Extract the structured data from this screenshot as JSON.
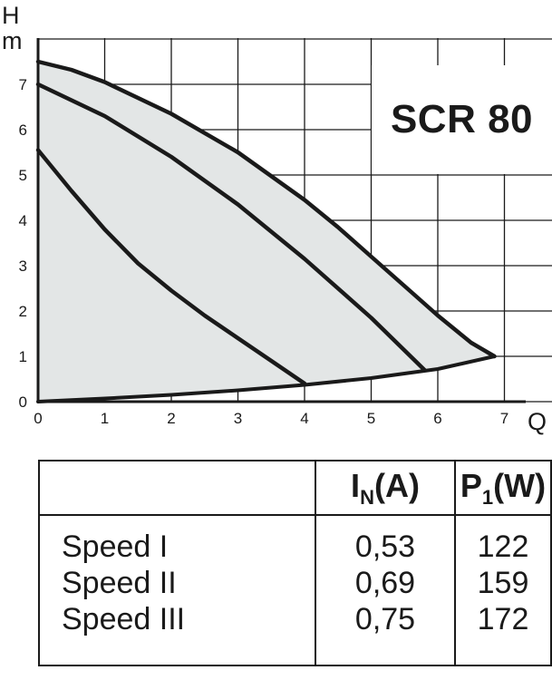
{
  "title": "SCR 80",
  "chart_data": {
    "type": "line",
    "title": "SCR 80",
    "ylabel_main": "H",
    "ylabel_unit": "m",
    "xlabel": "Q",
    "xlim": [
      0,
      7.5
    ],
    "ylim": [
      0,
      8
    ],
    "x_ticks": [
      "0",
      "1",
      "2",
      "3",
      "4",
      "5",
      "6",
      "7"
    ],
    "y_ticks": [
      "0",
      "1",
      "2",
      "3",
      "4",
      "5",
      "6",
      "7"
    ],
    "grid": true,
    "shaded_region": "operating area under max curve",
    "colors": {
      "line": "#1a1a1a",
      "fill": "#e3e6e6",
      "grid": "#1a1a1a"
    },
    "series": [
      {
        "x": [
          0,
          0.5,
          1,
          2,
          3,
          4,
          4.5,
          5,
          5.5,
          6,
          6.5,
          6.85
        ],
        "y": [
          7.5,
          7.32,
          7.05,
          6.35,
          5.5,
          4.45,
          3.85,
          3.2,
          2.55,
          1.9,
          1.3,
          1.0
        ]
      },
      {
        "x": [
          0,
          1,
          2,
          3,
          4,
          5,
          5.8
        ],
        "y": [
          7.0,
          6.3,
          5.4,
          4.35,
          3.15,
          1.85,
          0.7
        ]
      },
      {
        "x": [
          0,
          0.5,
          1,
          1.5,
          2,
          2.5,
          3,
          3.5,
          4.0
        ],
        "y": [
          5.55,
          4.65,
          3.8,
          3.05,
          2.45,
          1.9,
          1.4,
          0.9,
          0.4
        ]
      },
      {
        "x": [
          0,
          1,
          2,
          3,
          4,
          5,
          6,
          6.85
        ],
        "y": [
          0,
          0.07,
          0.15,
          0.25,
          0.37,
          0.52,
          0.72,
          1.0
        ]
      }
    ]
  },
  "table": {
    "headers": {
      "current_main": "I",
      "current_sub": "N",
      "current_unit": "(A)",
      "power_main": "P",
      "power_sub": "1",
      "power_unit": "(W)"
    },
    "rows": [
      {
        "label": "Speed I",
        "current": "0,53",
        "power": "122"
      },
      {
        "label": "Speed II",
        "current": "0,69",
        "power": "159"
      },
      {
        "label": "Speed III",
        "current": "0,75",
        "power": "172"
      }
    ]
  }
}
